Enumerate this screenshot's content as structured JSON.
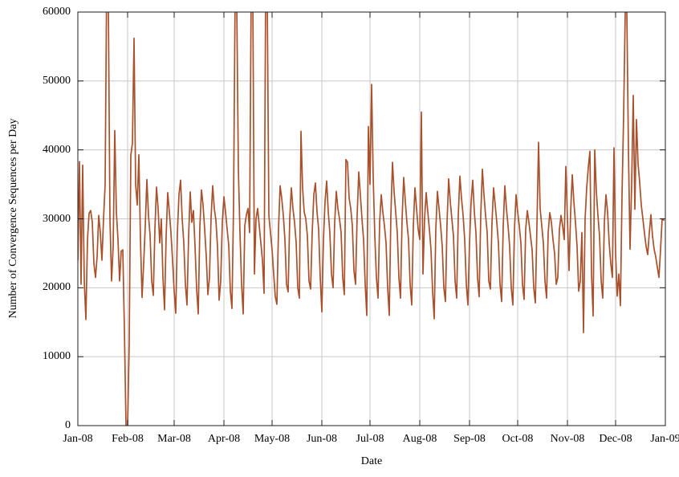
{
  "chart_data": {
    "type": "line",
    "title": "",
    "xlabel": "Date",
    "ylabel": "Number of Convergence Sequences per Day",
    "x_tick_labels": [
      "Jan-08",
      "Feb-08",
      "Mar-08",
      "Apr-08",
      "May-08",
      "Jun-08",
      "Jul-08",
      "Aug-08",
      "Sep-08",
      "Oct-08",
      "Nov-08",
      "Dec-08",
      "Jan-09"
    ],
    "x_tick_day_offsets": [
      0,
      31,
      60,
      91,
      121,
      152,
      182,
      213,
      244,
      274,
      305,
      335,
      366
    ],
    "x_range_days": 366,
    "y_ticks": [
      0,
      10000,
      20000,
      30000,
      40000,
      50000,
      60000
    ],
    "ylim": [
      0,
      60000
    ],
    "grid": true,
    "legend": "none",
    "clipped_at_ymax": true,
    "line_color": "#a8512c",
    "grid_color": "#c8c8c8",
    "axis_color": "#1c1c1c",
    "series": [
      {
        "name": "convergence-sequences-per-day",
        "cadence": "daily",
        "start": "Jan-08",
        "end": "Jan-09",
        "values": [
          24000,
          38300,
          20500,
          37800,
          21000,
          15400,
          27000,
          30800,
          31200,
          29500,
          23500,
          21500,
          24500,
          30500,
          28000,
          24000,
          30000,
          35000,
          66000,
          61000,
          30000,
          21000,
          26000,
          42800,
          31000,
          27000,
          21000,
          25300,
          25500,
          14000,
          0,
          0,
          12000,
          39200,
          41000,
          56200,
          35000,
          32000,
          39300,
          27000,
          18600,
          23500,
          29000,
          35700,
          30500,
          27600,
          21000,
          18900,
          28500,
          34600,
          31500,
          26500,
          30000,
          21500,
          16800,
          27500,
          33800,
          31000,
          28000,
          24000,
          19500,
          16300,
          28000,
          33500,
          35600,
          30000,
          26500,
          20500,
          17500,
          27500,
          33900,
          29500,
          31200,
          26000,
          19800,
          16200,
          28800,
          34200,
          32000,
          28500,
          24500,
          19000,
          21500,
          30200,
          34800,
          31500,
          29800,
          26000,
          18200,
          21000,
          29500,
          33200,
          31000,
          28500,
          26200,
          19500,
          17000,
          32000,
          63500,
          61000,
          37200,
          28000,
          20500,
          16200,
          29000,
          30600,
          31500,
          28000,
          64000,
          62000,
          22000,
          30000,
          31500,
          29000,
          26500,
          24000,
          19200,
          63500,
          61500,
          30500,
          28000,
          25500,
          22000,
          18700,
          17600,
          28500,
          34800,
          33000,
          30500,
          27000,
          20500,
          19400,
          30000,
          34500,
          31500,
          29500,
          26500,
          20000,
          18500,
          42700,
          34500,
          31000,
          30000,
          27500,
          21000,
          19800,
          28000,
          33500,
          35200,
          31000,
          28500,
          21500,
          16500,
          27000,
          32500,
          35500,
          31000,
          28000,
          22000,
          20000,
          29500,
          34000,
          31500,
          30000,
          28000,
          21500,
          19000,
          38600,
          38200,
          33000,
          31500,
          29000,
          22500,
          20500,
          30500,
          36800,
          33500,
          30000,
          27000,
          20500,
          16000,
          43400,
          35000,
          49500,
          36000,
          27500,
          21500,
          18500,
          29500,
          33500,
          31000,
          29000,
          26500,
          20000,
          16000,
          30500,
          38200,
          34000,
          31000,
          28000,
          21500,
          18500,
          30000,
          36000,
          32500,
          29500,
          27000,
          20500,
          17500,
          29000,
          34500,
          31500,
          28500,
          27000,
          45500,
          22000,
          30000,
          33800,
          31000,
          28500,
          25500,
          19500,
          15500,
          28500,
          34000,
          31500,
          29000,
          26000,
          20000,
          18000,
          29500,
          35800,
          32500,
          30000,
          27500,
          21000,
          18500,
          30500,
          36200,
          33000,
          30500,
          27000,
          20500,
          17500,
          26500,
          32500,
          35600,
          31000,
          28000,
          21500,
          18700,
          30500,
          37200,
          33500,
          30500,
          28000,
          21000,
          19800,
          29500,
          34500,
          32000,
          29500,
          26500,
          20500,
          18000,
          29000,
          34800,
          31500,
          29000,
          26000,
          20000,
          17500,
          28500,
          33500,
          31000,
          29000,
          26500,
          20500,
          18300,
          28500,
          31200,
          29500,
          27500,
          25500,
          20000,
          17800,
          29000,
          41100,
          31500,
          29000,
          26500,
          21000,
          18500,
          28000,
          30900,
          29500,
          27000,
          25000,
          20500,
          21500,
          28500,
          30500,
          29000,
          27000,
          37600,
          30000,
          22500,
          31000,
          36400,
          32500,
          29500,
          26000,
          19500,
          21000,
          28000,
          13500,
          30000,
          34500,
          37500,
          39800,
          22000,
          15900,
          40000,
          34000,
          30500,
          27500,
          21000,
          18500,
          29500,
          33500,
          31000,
          26500,
          23500,
          21500,
          40300,
          25000,
          18800,
          22000,
          17400,
          33400,
          45000,
          60000,
          60000,
          40000,
          25600,
          35000,
          47900,
          31400,
          44400,
          38000,
          35300,
          32000,
          30000,
          27900,
          26000,
          24800,
          28000,
          30600,
          27500,
          25600,
          24500,
          23000,
          21500,
          25500,
          30000,
          29800
        ]
      }
    ]
  }
}
